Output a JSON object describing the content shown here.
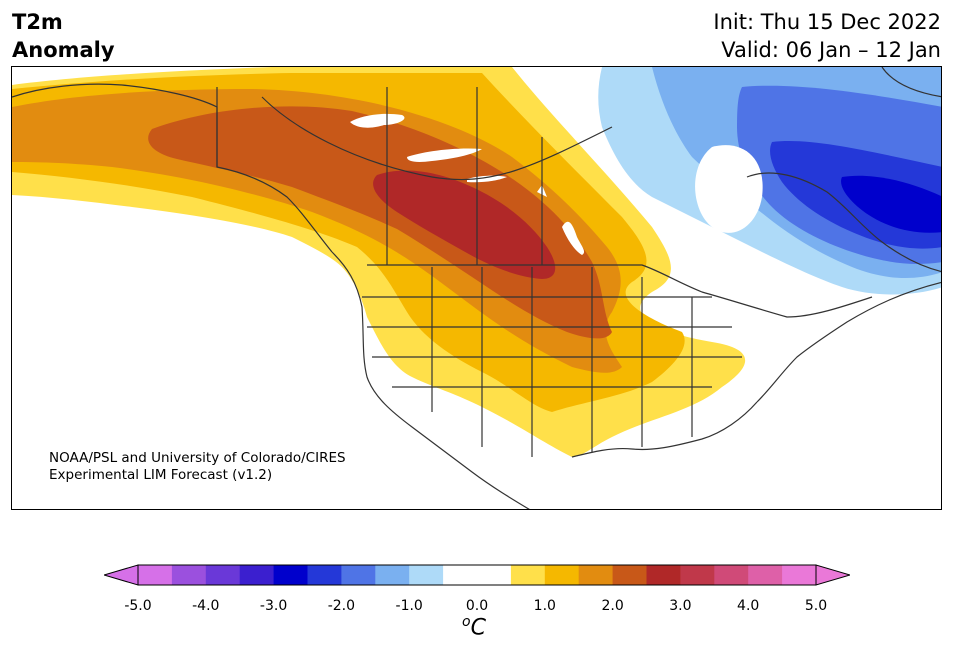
{
  "title": {
    "left_line1": "T2m",
    "left_line2": "Anomaly",
    "right_line1": "Init: Thu 15 Dec 2022",
    "right_line2": "Valid: 06 Jan – 12 Jan"
  },
  "credit": {
    "line1": "NOAA/PSL and University of Colorado/CIRES",
    "line2": "Experimental LIM Forecast (v1.2)"
  },
  "colorbar": {
    "unit_sup": "o",
    "unit_main": "C",
    "tick_labels": [
      "-5.0",
      "-4.0",
      "-3.0",
      "-2.0",
      "-1.0",
      "0.0",
      "1.0",
      "2.0",
      "3.0",
      "4.0",
      "5.0"
    ],
    "colors": [
      "#d670e8",
      "#9b50de",
      "#6a38d8",
      "#3b1fcf",
      "#0000cc",
      "#2438d8",
      "#4f74e6",
      "#7ab0f0",
      "#aedaf8",
      "#ffffff",
      "#ffffff",
      "#ffe04a",
      "#f5b800",
      "#e28c10",
      "#c85818",
      "#b02828",
      "#c0384a",
      "#d04a78",
      "#de60a8",
      "#ea78d8"
    ]
  },
  "map_colors": {
    "anom_0_5": "#ffe04a",
    "anom_1_0": "#f5b800",
    "anom_1_5": "#e28c10",
    "anom_2_0": "#c85818",
    "anom_2_5": "#b02828",
    "anom_neg_0_5": "#aedaf8",
    "anom_neg_1_0": "#7ab0f0",
    "anom_neg_1_5": "#4f74e6",
    "anom_neg_2_0": "#2438d8",
    "anom_neg_2_5": "#0000cc"
  }
}
